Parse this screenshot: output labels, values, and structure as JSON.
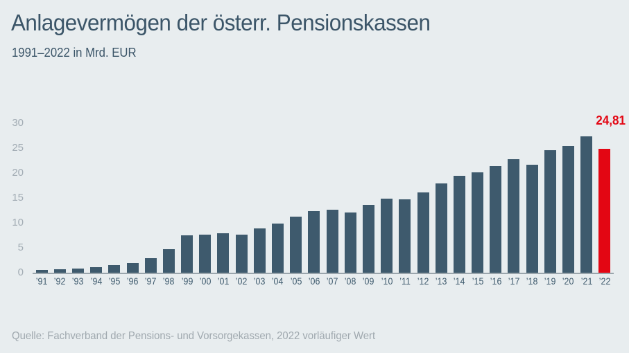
{
  "chart_data": {
    "type": "bar",
    "title": "Anlagevermögen der österr. Pensionskassen",
    "subtitle": "1991–2022 in Mrd. EUR",
    "xlabel": "",
    "ylabel": "Mrd. EUR",
    "ylim": [
      0,
      30
    ],
    "y_ticks": [
      0,
      5,
      10,
      15,
      20,
      25,
      30
    ],
    "grid": false,
    "legend": "none",
    "categories": [
      "’91",
      "’92",
      "’93",
      "’94",
      "’95",
      "’96",
      "’97",
      "’98",
      "’99",
      "’00",
      "’01",
      "’02",
      "’03",
      "’04",
      "’05",
      "’06",
      "’07",
      "’08",
      "’09",
      "’10",
      "’11",
      "’12",
      "’13",
      "’14",
      "’15",
      "’16",
      "’17",
      "’18",
      "’19",
      "’20",
      "’21",
      "’22"
    ],
    "values": [
      0.5,
      0.7,
      0.9,
      1.1,
      1.5,
      2.0,
      2.9,
      4.7,
      7.5,
      7.6,
      7.9,
      7.7,
      8.9,
      9.9,
      11.2,
      12.4,
      12.7,
      12.1,
      13.6,
      14.9,
      14.7,
      16.1,
      17.9,
      19.5,
      20.2,
      21.4,
      22.8,
      21.7,
      24.6,
      25.4,
      27.3,
      24.81
    ],
    "highlight_index": 31,
    "highlight_label": "24,81"
  },
  "footer": {
    "source": "Quelle: Fachverband der Pensions- und Vorsorgekassen, 2022 vorläufiger Wert"
  },
  "colors": {
    "background": "#e8edef",
    "bar": "#3e5a6d",
    "highlight": "#e30613",
    "title_text": "#3b5568",
    "axis_labels": "#a2acb4",
    "x_labels": "#3e5a6d",
    "axis_line": "#9aa5ac",
    "source_text": "#9fa8ae"
  }
}
